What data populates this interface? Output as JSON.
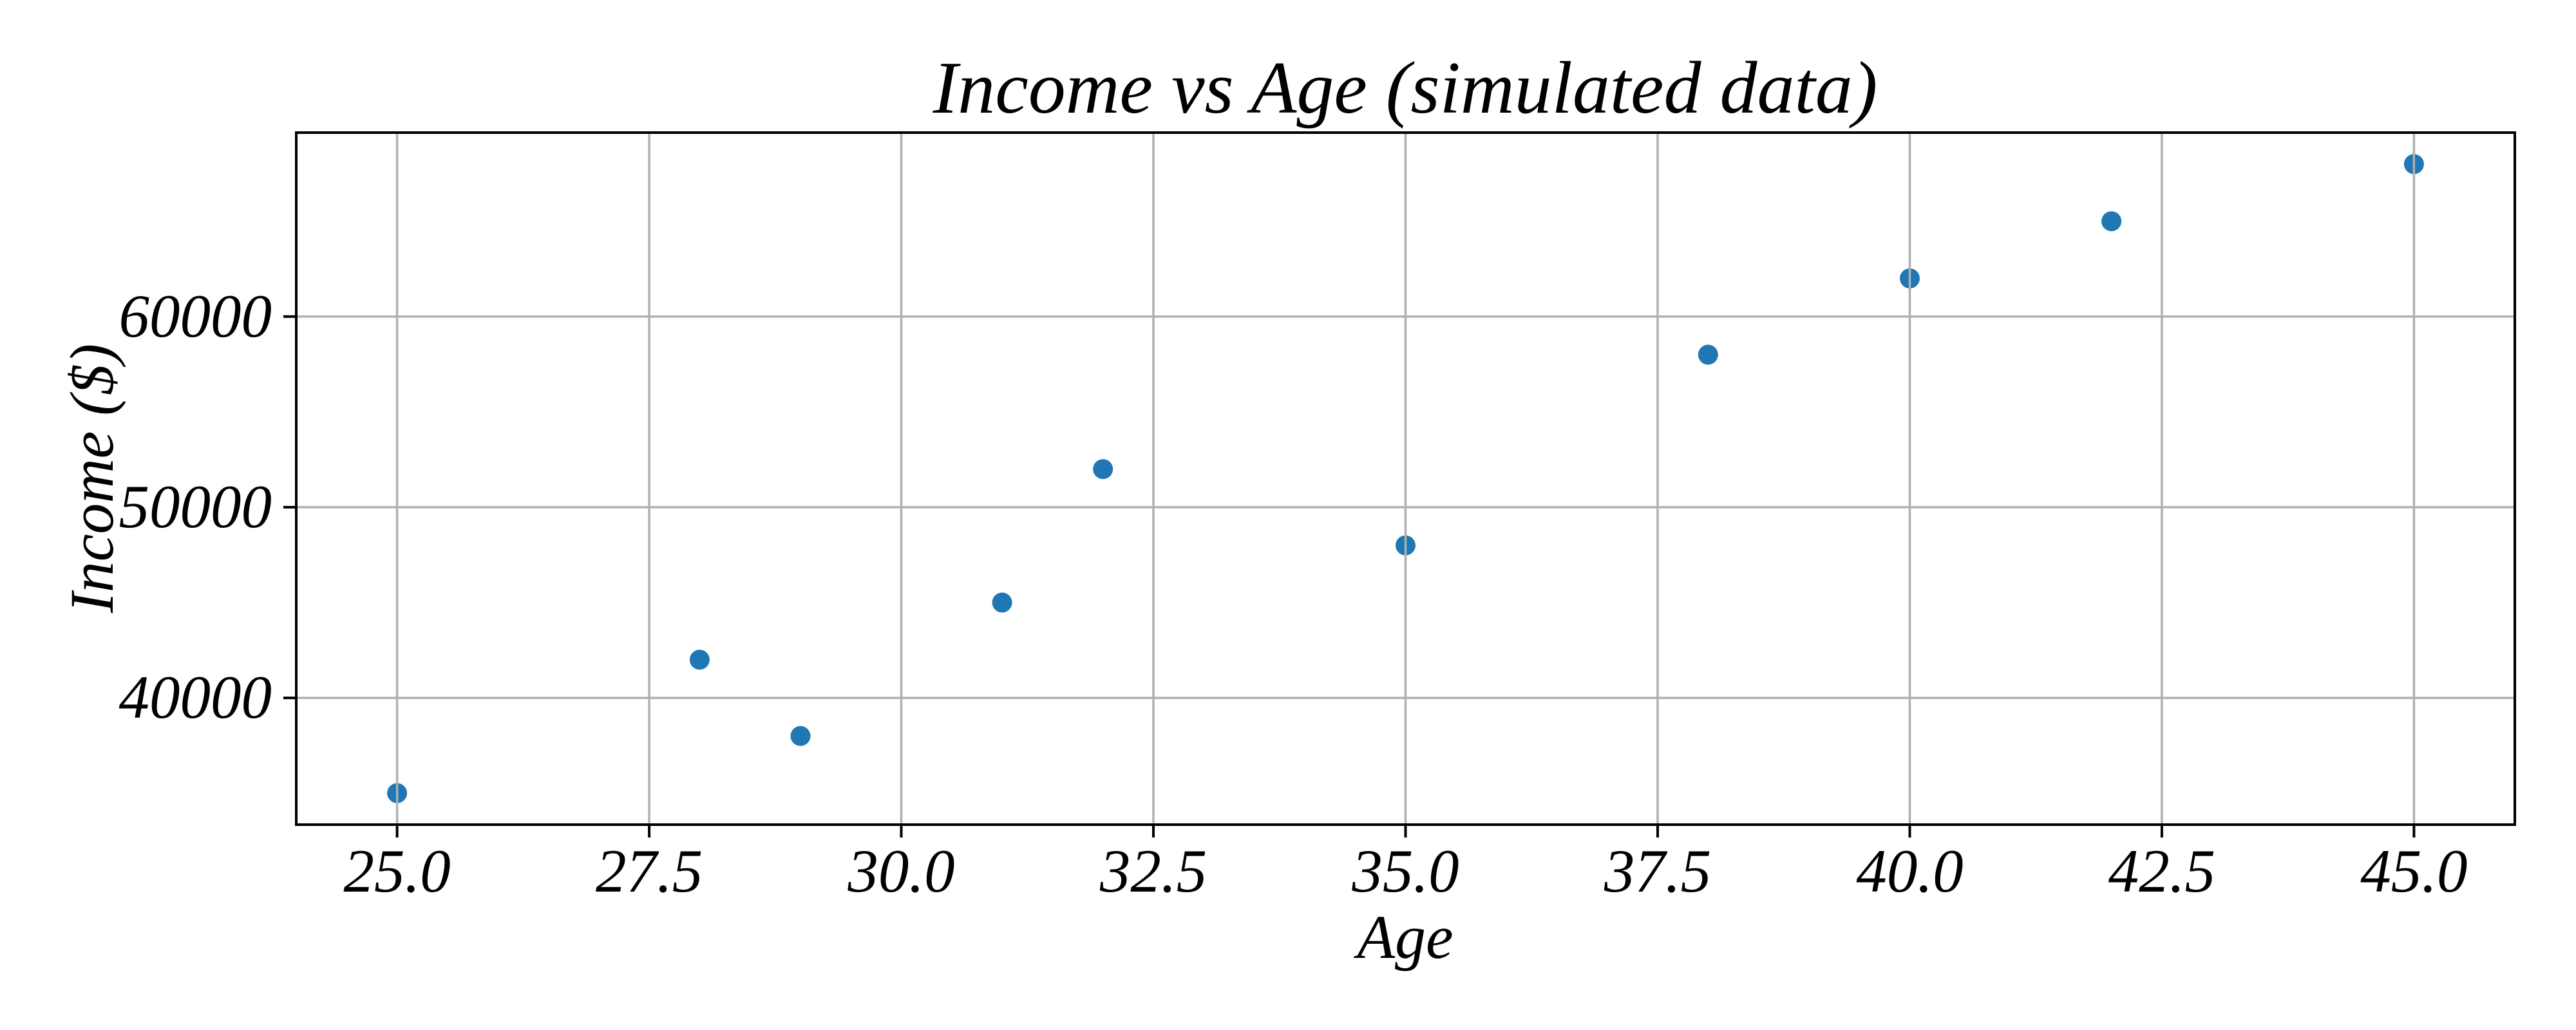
{
  "figure": {
    "title": "Income vs Age (simulated data)",
    "background": "#ffffff"
  },
  "chart_data": {
    "type": "scatter",
    "title": "Income vs Age (simulated data)",
    "xlabel": "Age",
    "ylabel": "Income ($)",
    "x": [
      25,
      28,
      29,
      31,
      32,
      35,
      38,
      40,
      42,
      45
    ],
    "y": [
      35000,
      42000,
      38000,
      45000,
      52000,
      48000,
      58000,
      62000,
      65000,
      68000
    ],
    "xlim": [
      24.0,
      46.0
    ],
    "ylim": [
      33350,
      69650
    ],
    "xticks": [
      25.0,
      27.5,
      30.0,
      32.5,
      35.0,
      37.5,
      40.0,
      42.5,
      45.0
    ],
    "xtick_labels": [
      "25.0",
      "27.5",
      "30.0",
      "32.5",
      "35.0",
      "37.5",
      "40.0",
      "42.5",
      "45.0"
    ],
    "yticks": [
      40000,
      50000,
      60000
    ],
    "ytick_labels": [
      "40000",
      "50000",
      "60000"
    ],
    "grid": true,
    "grid_over_points": true,
    "legend": "none",
    "marker_color": "#1f77b4",
    "marker_radius_px": 15.5,
    "grid_color": "#b0b0b0",
    "spine_color": "#000000",
    "background": "#ffffff"
  }
}
